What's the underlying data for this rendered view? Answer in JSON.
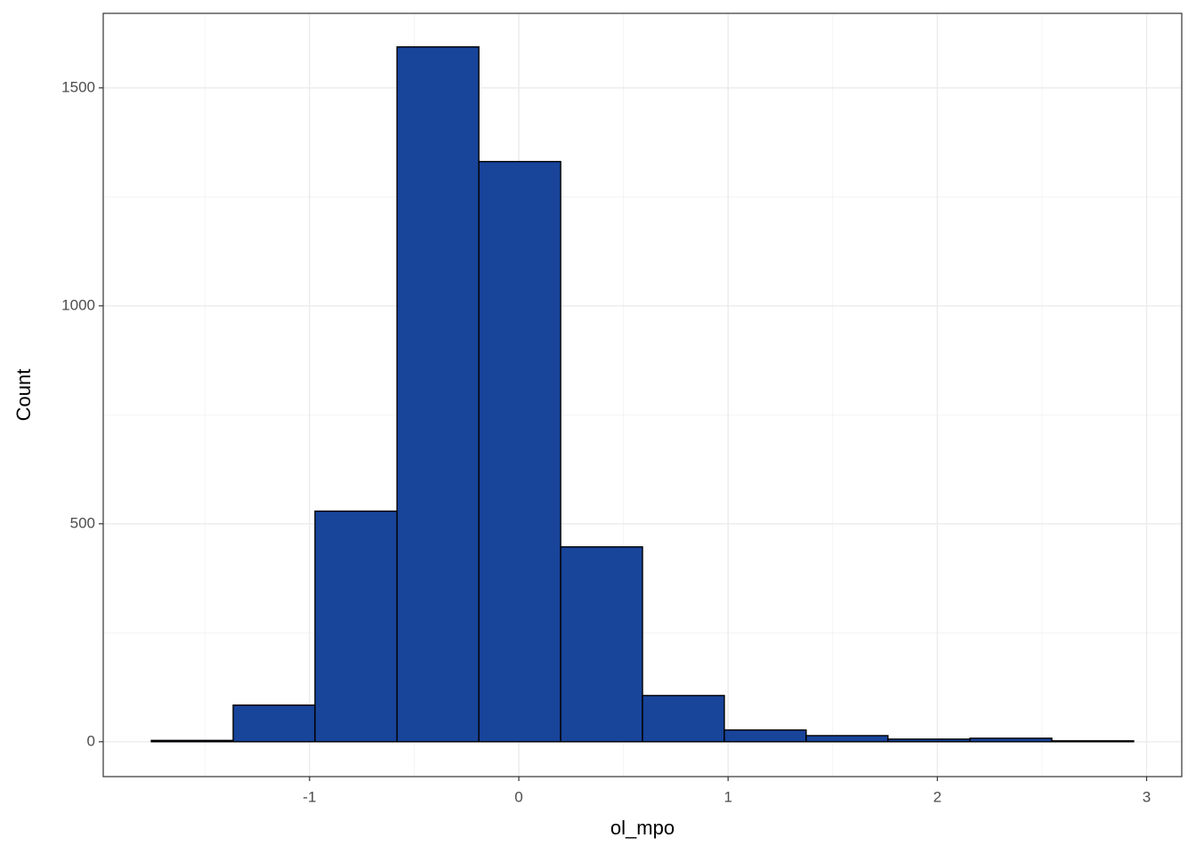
{
  "chart_data": {
    "type": "histogram",
    "x_label": "ol_mpo",
    "y_label": "Count",
    "bins": [
      -1.756,
      -1.365,
      -0.974,
      -0.582,
      -0.191,
      0.2,
      0.591,
      0.982,
      1.373,
      1.764,
      2.156,
      2.547,
      2.938
    ],
    "values": [
      3,
      84,
      529,
      1594,
      1331,
      447,
      106,
      27,
      14,
      6,
      8,
      2
    ],
    "color": "#18449a",
    "edgecolor": "#000000",
    "xlim": [
      -1.986,
      3.168
    ],
    "xticks": [
      -1,
      0,
      1,
      2,
      3
    ],
    "ylim": [
      -80,
      1671
    ],
    "yticks": [
      0,
      500,
      1000,
      1500
    ],
    "grid": true
  }
}
